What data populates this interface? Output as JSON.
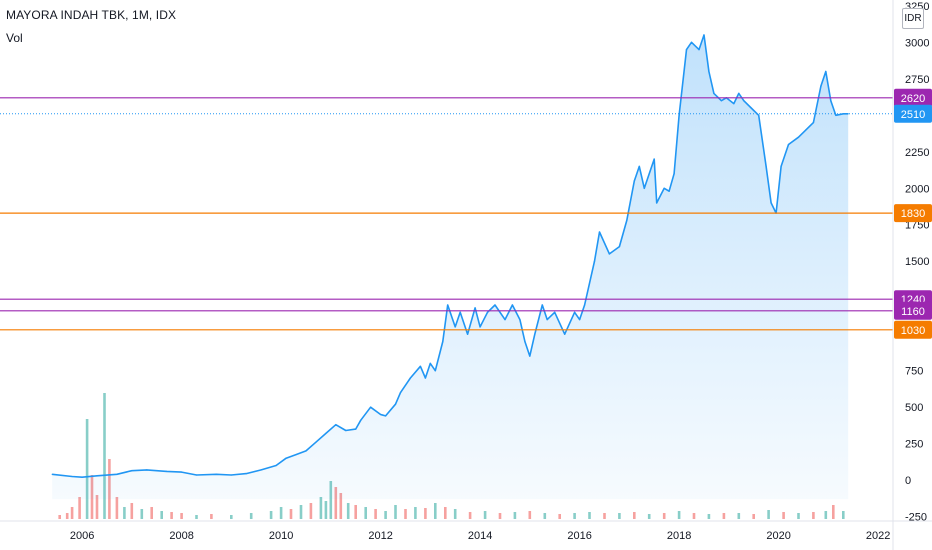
{
  "header": {
    "title": "MAYORA INDAH TBK, 1M, IDX",
    "volume_label": "Vol",
    "currency": "IDR"
  },
  "colors": {
    "price_line": "#2196f3",
    "area_fill": "#2196f3",
    "purple_level": "#9c27b0",
    "orange_level": "#f57c00",
    "last_price_tag": "#2196f3",
    "vol_up": "#26a69a",
    "vol_down": "#ef5350"
  },
  "chart_data": {
    "type": "area",
    "title": "MAYORA INDAH TBK, 1M, IDX",
    "xlabel": "",
    "ylabel": "",
    "x_ticks": [
      "2006",
      "2008",
      "2010",
      "2012",
      "2014",
      "2016",
      "2018",
      "2020",
      "2022"
    ],
    "y_ticks": [
      3250,
      3000,
      2750,
      2500,
      2250,
      2000,
      1750,
      1500,
      1250,
      1000,
      750,
      500,
      250,
      0,
      -250
    ],
    "xlim": [
      2004.35,
      2022.3
    ],
    "ylim": [
      -280,
      3290
    ],
    "grid": false,
    "series": [
      {
        "kind": "price",
        "x": [
          2005.4,
          2005.8,
          2006.0,
          2006.3,
          2006.7,
          2007.0,
          2007.3,
          2007.7,
          2008.0,
          2008.3,
          2008.7,
          2009.0,
          2009.3,
          2009.6,
          2009.9,
          2010.1,
          2010.3,
          2010.5,
          2010.7,
          2010.9,
          2011.1,
          2011.3,
          2011.5,
          2011.6,
          2011.8,
          2012.0,
          2012.1,
          2012.3,
          2012.4,
          2012.6,
          2012.8,
          2012.9,
          2013.0,
          2013.1,
          2013.25,
          2013.35,
          2013.5,
          2013.6,
          2013.75,
          2013.9,
          2014.0,
          2014.15,
          2014.3,
          2014.5,
          2014.65,
          2014.8,
          2014.9,
          2015.0,
          2015.1,
          2015.25,
          2015.35,
          2015.5,
          2015.7,
          2015.9,
          2016.0,
          2016.1,
          2016.3,
          2016.4,
          2016.6,
          2016.8,
          2016.95,
          2017.1,
          2017.2,
          2017.3,
          2017.5,
          2017.55,
          2017.7,
          2017.8,
          2017.9,
          2018.0,
          2018.15,
          2018.25,
          2018.4,
          2018.5,
          2018.6,
          2018.7,
          2018.85,
          2018.95,
          2019.1,
          2019.2,
          2019.3,
          2019.45,
          2019.6,
          2019.75,
          2019.85,
          2019.95,
          2020.05,
          2020.2,
          2020.4,
          2020.55,
          2020.7,
          2020.85,
          2020.95,
          2021.05,
          2021.15,
          2021.3,
          2021.4
        ],
        "y": [
          40,
          25,
          20,
          30,
          40,
          65,
          70,
          60,
          55,
          35,
          40,
          35,
          45,
          70,
          100,
          150,
          175,
          200,
          260,
          320,
          380,
          340,
          350,
          410,
          500,
          450,
          440,
          520,
          600,
          700,
          780,
          700,
          800,
          750,
          950,
          1200,
          1050,
          1150,
          1000,
          1180,
          1050,
          1150,
          1200,
          1100,
          1200,
          1100,
          950,
          850,
          1000,
          1200,
          1100,
          1150,
          1000,
          1150,
          1100,
          1200,
          1500,
          1700,
          1550,
          1600,
          1780,
          2050,
          2150,
          2000,
          2200,
          1900,
          2000,
          1980,
          2100,
          2500,
          2950,
          3000,
          2950,
          3050,
          2800,
          2650,
          2600,
          2620,
          2580,
          2650,
          2600,
          2550,
          2500,
          2150,
          1900,
          1830,
          2150,
          2300,
          2350,
          2400,
          2450,
          2700,
          2800,
          2600,
          2500,
          2510,
          2510
        ]
      },
      {
        "kind": "volume",
        "values": [
          {
            "x": 2005.55,
            "v": 20,
            "dir": "down"
          },
          {
            "x": 2005.7,
            "v": 30,
            "dir": "down"
          },
          {
            "x": 2005.8,
            "v": 60,
            "dir": "down"
          },
          {
            "x": 2005.95,
            "v": 110,
            "dir": "down"
          },
          {
            "x": 2006.1,
            "v": 500,
            "dir": "up"
          },
          {
            "x": 2006.2,
            "v": 220,
            "dir": "down"
          },
          {
            "x": 2006.3,
            "v": 120,
            "dir": "down"
          },
          {
            "x": 2006.45,
            "v": 630,
            "dir": "up"
          },
          {
            "x": 2006.55,
            "v": 300,
            "dir": "down"
          },
          {
            "x": 2006.7,
            "v": 110,
            "dir": "down"
          },
          {
            "x": 2006.85,
            "v": 60,
            "dir": "up"
          },
          {
            "x": 2007.0,
            "v": 80,
            "dir": "down"
          },
          {
            "x": 2007.2,
            "v": 50,
            "dir": "up"
          },
          {
            "x": 2007.4,
            "v": 60,
            "dir": "down"
          },
          {
            "x": 2007.6,
            "v": 40,
            "dir": "up"
          },
          {
            "x": 2007.8,
            "v": 35,
            "dir": "down"
          },
          {
            "x": 2008.0,
            "v": 30,
            "dir": "down"
          },
          {
            "x": 2008.3,
            "v": 20,
            "dir": "up"
          },
          {
            "x": 2008.6,
            "v": 25,
            "dir": "down"
          },
          {
            "x": 2009.0,
            "v": 20,
            "dir": "up"
          },
          {
            "x": 2009.4,
            "v": 30,
            "dir": "up"
          },
          {
            "x": 2009.8,
            "v": 40,
            "dir": "up"
          },
          {
            "x": 2010.0,
            "v": 60,
            "dir": "up"
          },
          {
            "x": 2010.2,
            "v": 50,
            "dir": "down"
          },
          {
            "x": 2010.4,
            "v": 70,
            "dir": "up"
          },
          {
            "x": 2010.6,
            "v": 80,
            "dir": "down"
          },
          {
            "x": 2010.8,
            "v": 110,
            "dir": "up"
          },
          {
            "x": 2010.9,
            "v": 90,
            "dir": "up"
          },
          {
            "x": 2011.0,
            "v": 190,
            "dir": "up"
          },
          {
            "x": 2011.1,
            "v": 160,
            "dir": "down"
          },
          {
            "x": 2011.2,
            "v": 130,
            "dir": "down"
          },
          {
            "x": 2011.35,
            "v": 80,
            "dir": "up"
          },
          {
            "x": 2011.5,
            "v": 70,
            "dir": "down"
          },
          {
            "x": 2011.7,
            "v": 60,
            "dir": "up"
          },
          {
            "x": 2011.9,
            "v": 50,
            "dir": "down"
          },
          {
            "x": 2012.1,
            "v": 40,
            "dir": "up"
          },
          {
            "x": 2012.3,
            "v": 70,
            "dir": "up"
          },
          {
            "x": 2012.5,
            "v": 50,
            "dir": "down"
          },
          {
            "x": 2012.7,
            "v": 60,
            "dir": "up"
          },
          {
            "x": 2012.9,
            "v": 55,
            "dir": "down"
          },
          {
            "x": 2013.1,
            "v": 80,
            "dir": "up"
          },
          {
            "x": 2013.3,
            "v": 60,
            "dir": "down"
          },
          {
            "x": 2013.5,
            "v": 50,
            "dir": "up"
          },
          {
            "x": 2013.8,
            "v": 35,
            "dir": "down"
          },
          {
            "x": 2014.1,
            "v": 40,
            "dir": "up"
          },
          {
            "x": 2014.4,
            "v": 30,
            "dir": "down"
          },
          {
            "x": 2014.7,
            "v": 35,
            "dir": "up"
          },
          {
            "x": 2015.0,
            "v": 40,
            "dir": "down"
          },
          {
            "x": 2015.3,
            "v": 30,
            "dir": "up"
          },
          {
            "x": 2015.6,
            "v": 25,
            "dir": "down"
          },
          {
            "x": 2015.9,
            "v": 30,
            "dir": "up"
          },
          {
            "x": 2016.2,
            "v": 35,
            "dir": "up"
          },
          {
            "x": 2016.5,
            "v": 30,
            "dir": "down"
          },
          {
            "x": 2016.8,
            "v": 30,
            "dir": "up"
          },
          {
            "x": 2017.1,
            "v": 35,
            "dir": "down"
          },
          {
            "x": 2017.4,
            "v": 25,
            "dir": "up"
          },
          {
            "x": 2017.7,
            "v": 30,
            "dir": "down"
          },
          {
            "x": 2018.0,
            "v": 40,
            "dir": "up"
          },
          {
            "x": 2018.3,
            "v": 30,
            "dir": "down"
          },
          {
            "x": 2018.6,
            "v": 25,
            "dir": "up"
          },
          {
            "x": 2018.9,
            "v": 30,
            "dir": "down"
          },
          {
            "x": 2019.2,
            "v": 30,
            "dir": "up"
          },
          {
            "x": 2019.5,
            "v": 25,
            "dir": "down"
          },
          {
            "x": 2019.8,
            "v": 45,
            "dir": "up"
          },
          {
            "x": 2020.1,
            "v": 35,
            "dir": "down"
          },
          {
            "x": 2020.4,
            "v": 30,
            "dir": "up"
          },
          {
            "x": 2020.7,
            "v": 35,
            "dir": "down"
          },
          {
            "x": 2020.95,
            "v": 40,
            "dir": "up"
          },
          {
            "x": 2021.1,
            "v": 70,
            "dir": "down"
          },
          {
            "x": 2021.3,
            "v": 40,
            "dir": "up"
          }
        ]
      }
    ],
    "levels": [
      {
        "value": 2620,
        "color": "purple"
      },
      {
        "value": 1830,
        "color": "orange"
      },
      {
        "value": 1240,
        "color": "purple"
      },
      {
        "value": 1160,
        "color": "purple"
      },
      {
        "value": 1030,
        "color": "orange"
      }
    ],
    "last_price": 2510
  }
}
